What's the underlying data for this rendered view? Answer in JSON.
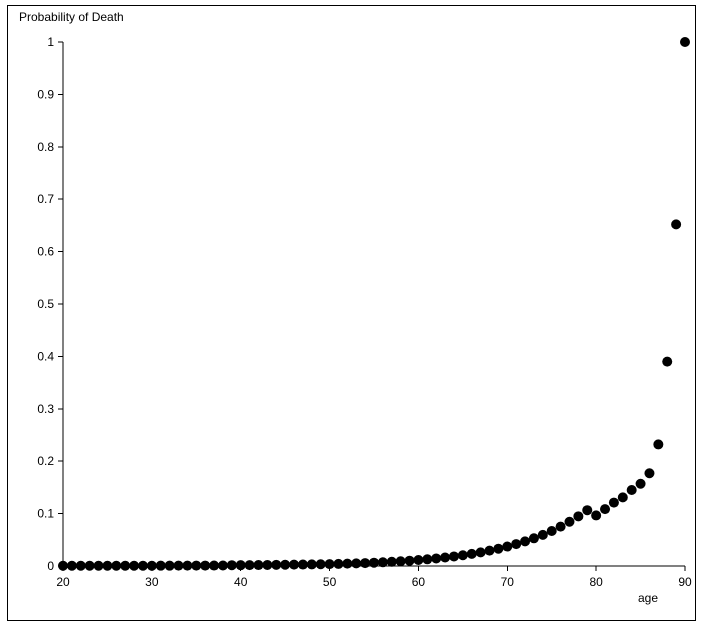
{
  "chart_data": {
    "type": "scatter",
    "title": "",
    "ylabel": "Probability of Death",
    "xlabel": "age",
    "xlim": [
      20,
      90
    ],
    "ylim": [
      0,
      1
    ],
    "xticks": [
      20,
      30,
      40,
      50,
      60,
      70,
      80,
      90
    ],
    "yticks": [
      0,
      0.1,
      0.2,
      0.3,
      0.4,
      0.5,
      0.6,
      0.7,
      0.8,
      0.9,
      1
    ],
    "ytick_labels": [
      "0",
      "0.1",
      "0.2",
      "0.3",
      "0.4",
      "0.5",
      "0.6",
      "0.7",
      "0.8",
      "0.9",
      "1"
    ],
    "grid": false,
    "marker_color": "#000000",
    "series": [
      {
        "x": [
          20,
          21,
          22,
          23,
          24,
          25,
          26,
          27,
          28,
          29,
          30,
          31,
          32,
          33,
          34,
          35,
          36,
          37,
          38,
          39,
          40,
          41,
          42,
          43,
          44,
          45,
          46,
          47,
          48,
          49,
          50,
          51,
          52,
          53,
          54,
          55,
          56,
          57,
          58,
          59,
          60,
          61,
          62,
          63,
          64,
          65,
          66,
          67,
          68,
          69,
          70,
          71,
          72,
          73,
          74,
          75,
          76,
          77,
          78,
          79,
          80,
          81,
          82,
          83,
          84,
          85,
          86,
          87,
          88,
          89,
          90
        ],
        "y": [
          0.0005,
          0.0005,
          0.0005,
          0.0005,
          0.0005,
          0.0005,
          0.0005,
          0.0005,
          0.0005,
          0.0005,
          0.0005,
          0.0006,
          0.0006,
          0.0007,
          0.0007,
          0.0008,
          0.0008,
          0.0009,
          0.001,
          0.0015,
          0.0016,
          0.0017,
          0.0018,
          0.002,
          0.0022,
          0.0024,
          0.0026,
          0.0028,
          0.003,
          0.0033,
          0.0036,
          0.004,
          0.0045,
          0.005,
          0.0056,
          0.0063,
          0.0071,
          0.008,
          0.009,
          0.0101,
          0.0114,
          0.0128,
          0.0144,
          0.0162,
          0.0182,
          0.0205,
          0.0231,
          0.026,
          0.0293,
          0.033,
          0.0371,
          0.0418,
          0.047,
          0.0529,
          0.0594,
          0.0668,
          0.0751,
          0.0844,
          0.0948,
          0.1065,
          0.0965,
          0.1085,
          0.121,
          0.131,
          0.145,
          0.157,
          0.177,
          0.232,
          0.39,
          0.652,
          1.0
        ]
      }
    ]
  }
}
